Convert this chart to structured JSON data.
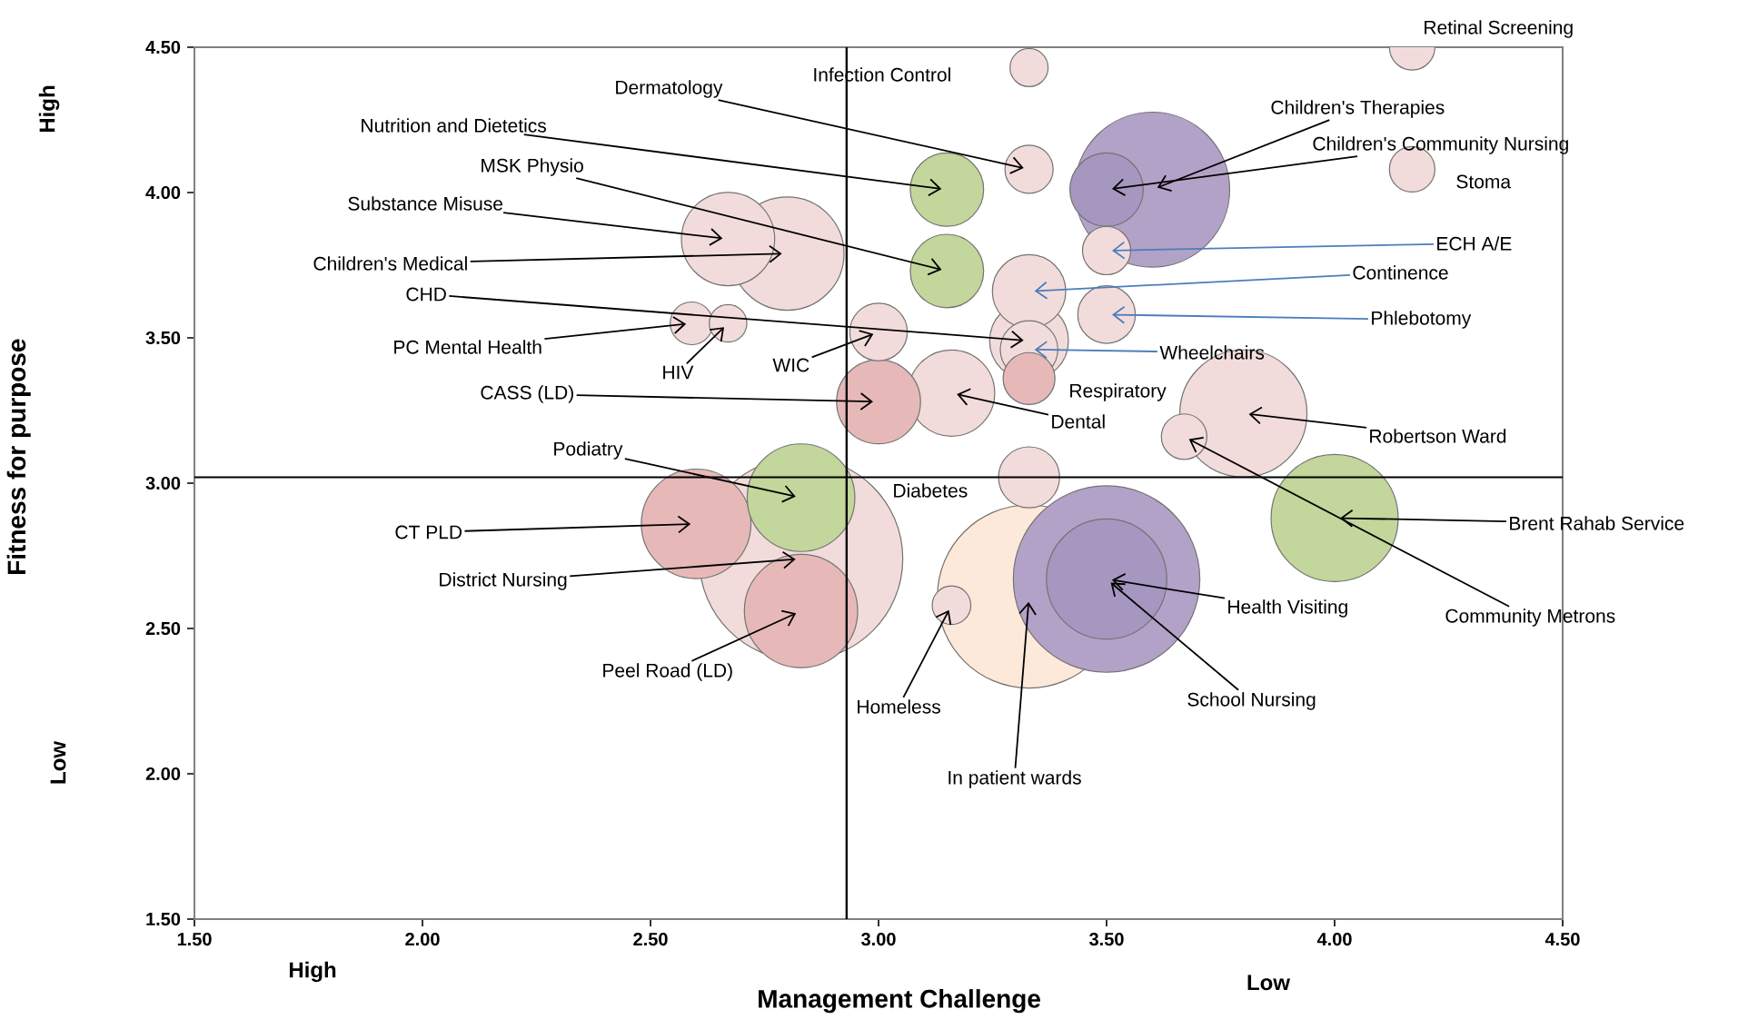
{
  "chart_data": {
    "type": "bubble",
    "xlabel": "Management Challenge",
    "ylabel": "Fitness for purpose",
    "x": [
      2.83,
      3.33,
      3.5,
      3.6,
      4.0,
      3.8,
      3.5,
      2.8,
      2.83,
      2.6,
      2.83,
      2.67,
      3.16,
      3.0,
      3.33,
      3.15,
      3.15,
      3.33,
      3.5,
      3.33,
      3.33,
      3.5,
      3.0,
      3.33,
      3.33,
      3.5,
      4.17,
      4.17,
      3.67,
      3.33,
      3.16,
      2.59,
      2.67
    ],
    "values": [
      2.74,
      2.61,
      2.67,
      4.01,
      2.88,
      3.24,
      2.67,
      3.79,
      2.56,
      2.86,
      2.95,
      3.84,
      3.31,
      3.28,
      3.49,
      4.01,
      3.73,
      3.66,
      4.01,
      3.02,
      3.46,
      3.58,
      3.52,
      3.36,
      4.08,
      3.8,
      4.08,
      4.5,
      3.16,
      4.43,
      2.58,
      3.55,
      3.55
    ],
    "sizes": [
      1.0,
      0.81,
      0.84,
      0.58,
      0.39,
      0.39,
      0.35,
      0.31,
      0.31,
      0.29,
      0.28,
      0.21,
      0.18,
      0.17,
      0.15,
      0.13,
      0.13,
      0.13,
      0.13,
      0.09,
      0.08,
      0.08,
      0.08,
      0.065,
      0.056,
      0.056,
      0.05,
      0.05,
      0.05,
      0.035,
      0.036,
      0.044,
      0.034
    ],
    "colors": [
      "#f2dcdb",
      "#fde9d9",
      "#b3a2c7",
      "#b3a2c7",
      "#c3d69b",
      "#f2dcdb",
      "#a597bf",
      "#f2dcdb",
      "#e6b9b8",
      "#e6b9b8",
      "#c3d69b",
      "#f2dcdb",
      "#f2dcdb",
      "#e6b9b8",
      "#f2dcdb",
      "#c3d69b",
      "#c3d69b",
      "#f2dcdb",
      "#a597bf",
      "#f2dcdb",
      "#f2dcdb",
      "#f2dcdb",
      "#f2dcdb",
      "#e6b9b8",
      "#f2dcdb",
      "#f2dcdb",
      "#f2dcdb",
      "#f2dcdb",
      "#f2dcdb",
      "#f2dcdb",
      "#f2dcdb",
      "#f2dcdb",
      "#f2dcdb"
    ],
    "xlim": [
      1.5,
      4.5
    ],
    "ylim": [
      1.5,
      4.5
    ],
    "xticks": [
      {
        "value": 1.5,
        "label": "1.50"
      },
      {
        "value": 2.0,
        "label": "2.00"
      },
      {
        "value": 2.5,
        "label": "2.50"
      },
      {
        "value": 3.0,
        "label": "3.00"
      },
      {
        "value": 3.5,
        "label": "3.50"
      },
      {
        "value": 4.0,
        "label": "4.00"
      },
      {
        "value": 4.5,
        "label": "4.50"
      }
    ],
    "yticks": [
      {
        "value": 1.5,
        "label": "1.50"
      },
      {
        "value": 2.0,
        "label": "2.00"
      },
      {
        "value": 2.5,
        "label": "2.50"
      },
      {
        "value": 3.0,
        "label": "3.00"
      },
      {
        "value": 3.5,
        "label": "3.50"
      },
      {
        "value": 4.0,
        "label": "4.00"
      },
      {
        "value": 4.5,
        "label": "4.50"
      }
    ],
    "ref_lines": [
      {
        "axis": "x",
        "value": 2.93,
        "color": "#000000"
      },
      {
        "axis": "y",
        "value": 3.02,
        "color": "#000000"
      }
    ],
    "grid": false,
    "annotations": [
      {
        "text": "District Nursing",
        "x": 2.83,
        "y": 2.74
      },
      {
        "text": "In patient wards",
        "x": 3.33,
        "y": 2.61
      },
      {
        "text": "Health Visiting",
        "x": 3.5,
        "y": 2.67
      },
      {
        "text": "Children's Therapies",
        "x": 3.6,
        "y": 4.01
      },
      {
        "text": "Brent Rahab Service",
        "x": 4.0,
        "y": 2.88
      },
      {
        "text": "Robertson Ward",
        "x": 3.8,
        "y": 3.24
      },
      {
        "text": "School Nursing",
        "x": 3.5,
        "y": 2.67
      },
      {
        "text": "Children's Medical",
        "x": 2.8,
        "y": 3.79
      },
      {
        "text": "Peel Road (LD)",
        "x": 2.83,
        "y": 2.56
      },
      {
        "text": "CT PLD",
        "x": 2.6,
        "y": 2.86
      },
      {
        "text": "Podiatry",
        "x": 2.83,
        "y": 2.95
      },
      {
        "text": "Substance Misuse",
        "x": 2.67,
        "y": 3.84
      },
      {
        "text": "Dental",
        "x": 3.16,
        "y": 3.31
      },
      {
        "text": "CASS (LD)",
        "x": 3.0,
        "y": 3.28
      },
      {
        "text": "CHD",
        "x": 3.33,
        "y": 3.49
      },
      {
        "text": "Nutrition and Dietetics",
        "x": 3.15,
        "y": 4.01
      },
      {
        "text": "MSK Physio",
        "x": 3.15,
        "y": 3.73
      },
      {
        "text": "Continence",
        "x": 3.33,
        "y": 3.66
      },
      {
        "text": "Children's Community Nursing",
        "x": 3.5,
        "y": 4.01
      },
      "Diabetes",
      {
        "text": "Wheelchairs",
        "x": 3.33,
        "y": 3.46
      },
      {
        "text": "Phlebotomy",
        "x": 3.5,
        "y": 3.58
      },
      {
        "text": "WIC",
        "x": 3.0,
        "y": 3.52
      },
      "Respiratory",
      {
        "text": "Dermatology",
        "x": 3.33,
        "y": 4.08
      },
      {
        "text": "ECH A/E",
        "x": 3.5,
        "y": 3.8
      },
      "Stoma",
      "Retinal Screening",
      {
        "text": "Community Metrons",
        "x": 3.67,
        "y": 3.16
      },
      "Infection Control",
      {
        "text": "Homeless",
        "x": 3.16,
        "y": 2.58
      },
      {
        "text": "PC Mental Health",
        "x": 2.59,
        "y": 3.55
      },
      {
        "text": "HIV",
        "x": 2.67,
        "y": 3.55
      },
      "High",
      "Low",
      "High",
      "Low"
    ]
  }
}
